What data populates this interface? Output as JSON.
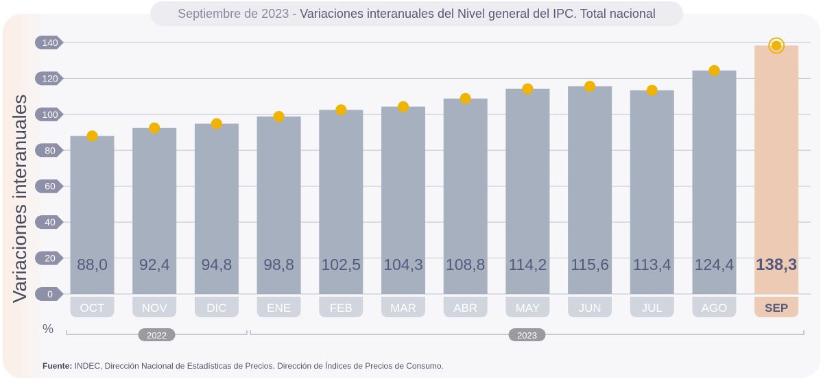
{
  "title": {
    "prefix": "Septiembre de 2023 - ",
    "main": "Variaciones interanuales del Nivel general del IPC. Total nacional"
  },
  "colors": {
    "bar": "#a6b0bf",
    "highlight_bar": "#eccab3",
    "dot": "#f0b400",
    "value_text": "#545a7e",
    "pill": "#d1d5de",
    "highlight_pill": "#eccab3"
  },
  "chart_data": {
    "type": "bar",
    "title": "Septiembre de 2023 - Variaciones interanuales del Nivel general del IPC. Total nacional",
    "ylabel": "Variaciones interanuales",
    "unit": "%",
    "ylim": [
      0,
      140
    ],
    "yticks": [
      0,
      20,
      40,
      60,
      80,
      100,
      120,
      140
    ],
    "grid": true,
    "categories": [
      "OCT",
      "NOV",
      "DIC",
      "ENE",
      "FEB",
      "MAR",
      "ABR",
      "MAY",
      "JUN",
      "JUL",
      "AGO",
      "SEP"
    ],
    "values": [
      88.0,
      92.4,
      94.8,
      98.8,
      102.5,
      104.3,
      108.8,
      114.2,
      115.6,
      113.4,
      124.4,
      138.3
    ],
    "value_labels": [
      "88,0",
      "92,4",
      "94,8",
      "98,8",
      "102,5",
      "104,3",
      "108,8",
      "114,2",
      "115,6",
      "113,4",
      "124,4",
      "138,3"
    ],
    "highlight_index": 11,
    "year_groups": [
      {
        "label": "2022",
        "from": 0,
        "to": 2
      },
      {
        "label": "2023",
        "from": 3,
        "to": 11
      }
    ]
  },
  "source": {
    "label": "Fuente:",
    "text": " INDEC, Dirección Nacional de Estadísticas de Precios. Dirección de Índices de Precios de Consumo."
  }
}
